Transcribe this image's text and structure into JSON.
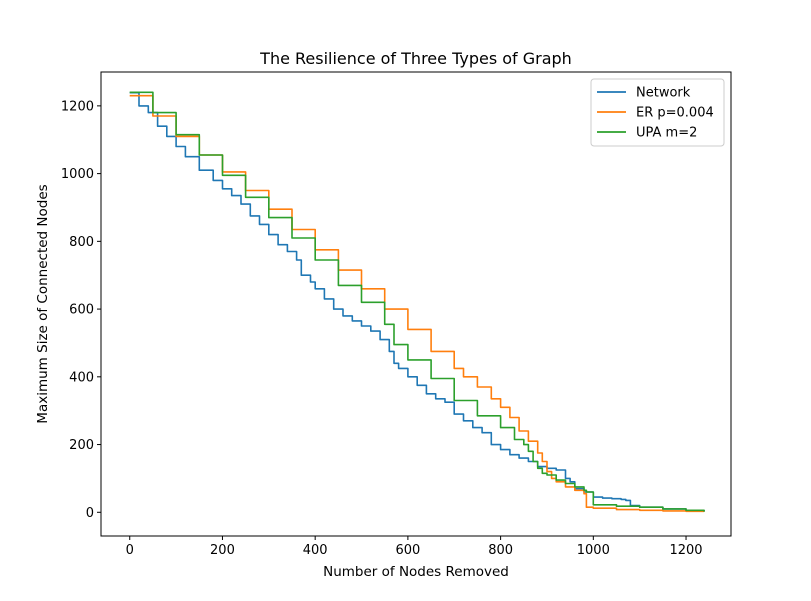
{
  "chart_data": {
    "type": "line",
    "title": "The Resilience of Three Types of Graph",
    "xlabel": "Number of Nodes Removed",
    "ylabel": "Maximum Size of Connected Nodes",
    "xlim": [
      -62,
      1297
    ],
    "ylim": [
      -70,
      1300
    ],
    "xticks": [
      0,
      200,
      400,
      600,
      800,
      1000,
      1200
    ],
    "yticks": [
      0,
      200,
      400,
      600,
      800,
      1000,
      1200
    ],
    "grid": false,
    "legend_position": "top-right",
    "series": [
      {
        "name": "Network",
        "color": "#1f77b4",
        "x": [
          0,
          20,
          40,
          60,
          80,
          100,
          120,
          150,
          180,
          200,
          220,
          240,
          260,
          280,
          300,
          320,
          340,
          360,
          370,
          390,
          400,
          420,
          440,
          460,
          480,
          500,
          520,
          540,
          560,
          570,
          580,
          600,
          620,
          640,
          660,
          680,
          700,
          720,
          740,
          760,
          780,
          800,
          820,
          840,
          860,
          880,
          900,
          920,
          940,
          950,
          960,
          980,
          1000,
          1020,
          1040,
          1060,
          1070,
          1080,
          1100,
          1150,
          1200,
          1239
        ],
        "y": [
          1239,
          1200,
          1180,
          1140,
          1110,
          1080,
          1050,
          1010,
          980,
          955,
          935,
          910,
          875,
          850,
          820,
          790,
          770,
          745,
          700,
          680,
          660,
          630,
          600,
          580,
          565,
          550,
          535,
          510,
          475,
          440,
          425,
          400,
          375,
          350,
          335,
          325,
          290,
          270,
          250,
          235,
          200,
          185,
          170,
          160,
          150,
          135,
          130,
          125,
          100,
          90,
          70,
          60,
          45,
          42,
          40,
          38,
          35,
          20,
          15,
          10,
          5,
          2
        ]
      },
      {
        "name": "ER p=0.004",
        "color": "#ff7f0e",
        "x": [
          0,
          50,
          100,
          150,
          200,
          250,
          300,
          350,
          400,
          450,
          500,
          550,
          600,
          650,
          700,
          720,
          750,
          780,
          800,
          820,
          840,
          860,
          880,
          890,
          900,
          910,
          920,
          940,
          960,
          980,
          985,
          1000,
          1050,
          1100,
          1150,
          1200,
          1239
        ],
        "y": [
          1230,
          1170,
          1110,
          1055,
          1005,
          950,
          895,
          835,
          775,
          715,
          660,
          600,
          540,
          475,
          425,
          400,
          370,
          335,
          310,
          280,
          240,
          210,
          175,
          150,
          120,
          100,
          90,
          75,
          65,
          55,
          15,
          12,
          8,
          6,
          4,
          3,
          2
        ]
      },
      {
        "name": "UPA m=2",
        "color": "#2ca02c",
        "x": [
          0,
          50,
          100,
          150,
          200,
          250,
          300,
          350,
          400,
          450,
          500,
          550,
          570,
          600,
          650,
          700,
          750,
          800,
          830,
          850,
          860,
          870,
          880,
          890,
          900,
          920,
          940,
          960,
          980,
          985,
          1000,
          1050,
          1100,
          1150,
          1200,
          1239
        ],
        "y": [
          1240,
          1180,
          1115,
          1055,
          995,
          930,
          870,
          810,
          745,
          670,
          620,
          555,
          495,
          450,
          395,
          330,
          285,
          250,
          215,
          200,
          180,
          150,
          130,
          115,
          110,
          95,
          85,
          75,
          65,
          60,
          22,
          18,
          15,
          10,
          6,
          2
        ]
      }
    ]
  }
}
